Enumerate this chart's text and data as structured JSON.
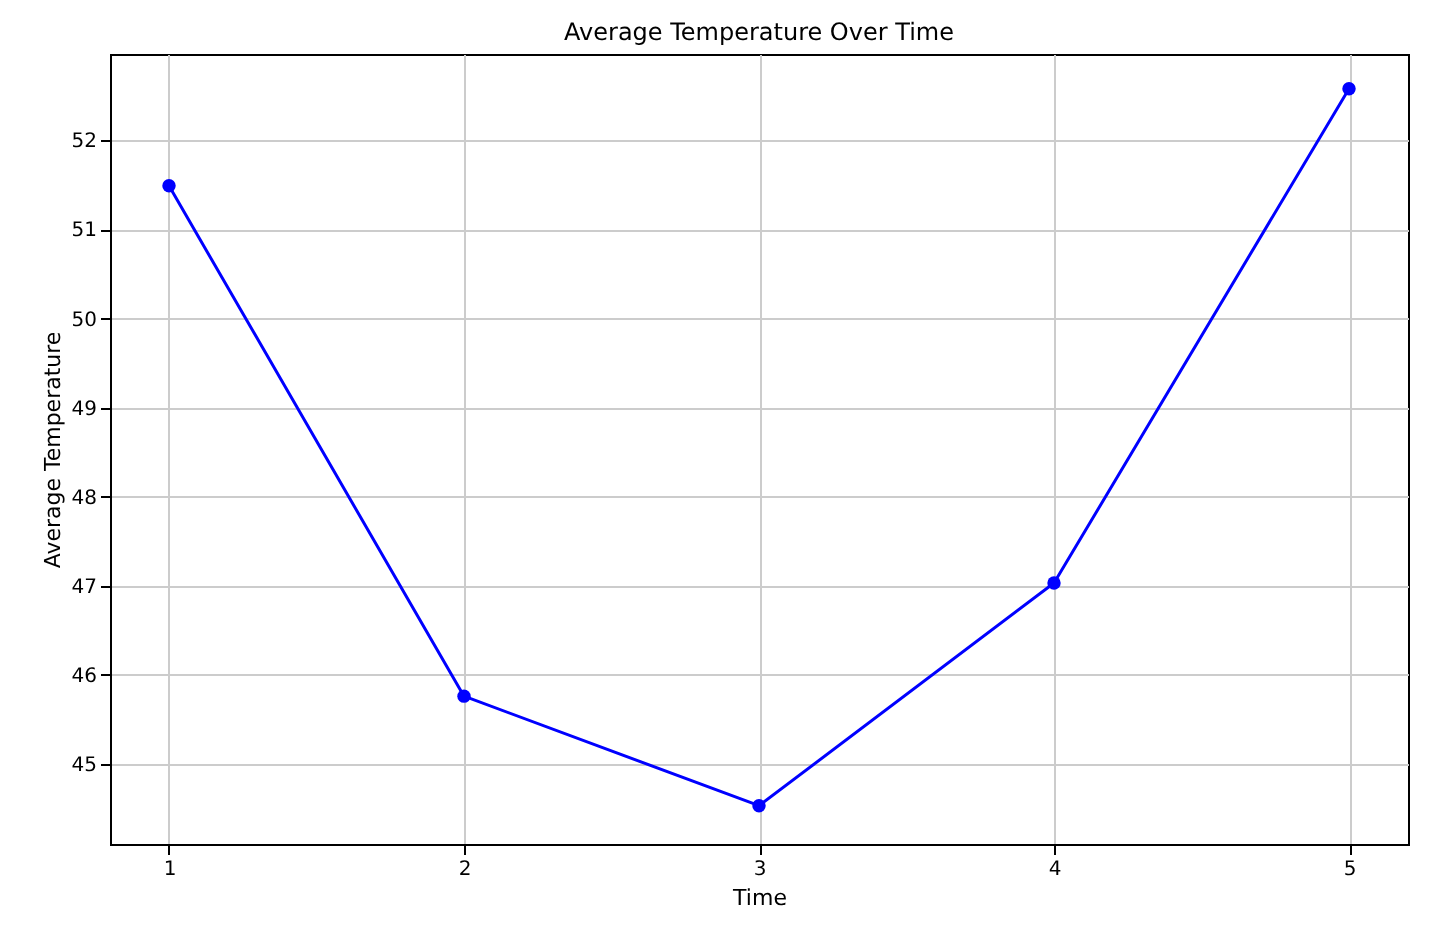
{
  "chart_data": {
    "type": "line",
    "title": "Average Temperature Over Time",
    "xlabel": "Time",
    "ylabel": "Average Temperature",
    "x": [
      1,
      2,
      3,
      4,
      5
    ],
    "series": [
      {
        "color": "#0000ff",
        "values": [
          51.49,
          45.76,
          44.53,
          47.03,
          52.58
        ]
      }
    ],
    "xlim": [
      0.8,
      5.2
    ],
    "xticks": [
      1,
      2,
      3,
      4,
      5
    ],
    "ylim": [
      44.1,
      52.97
    ],
    "yticks": [
      45,
      46,
      47,
      48,
      49,
      50,
      51,
      52
    ],
    "grid": true,
    "marker": "circle",
    "line_style": "solid"
  }
}
